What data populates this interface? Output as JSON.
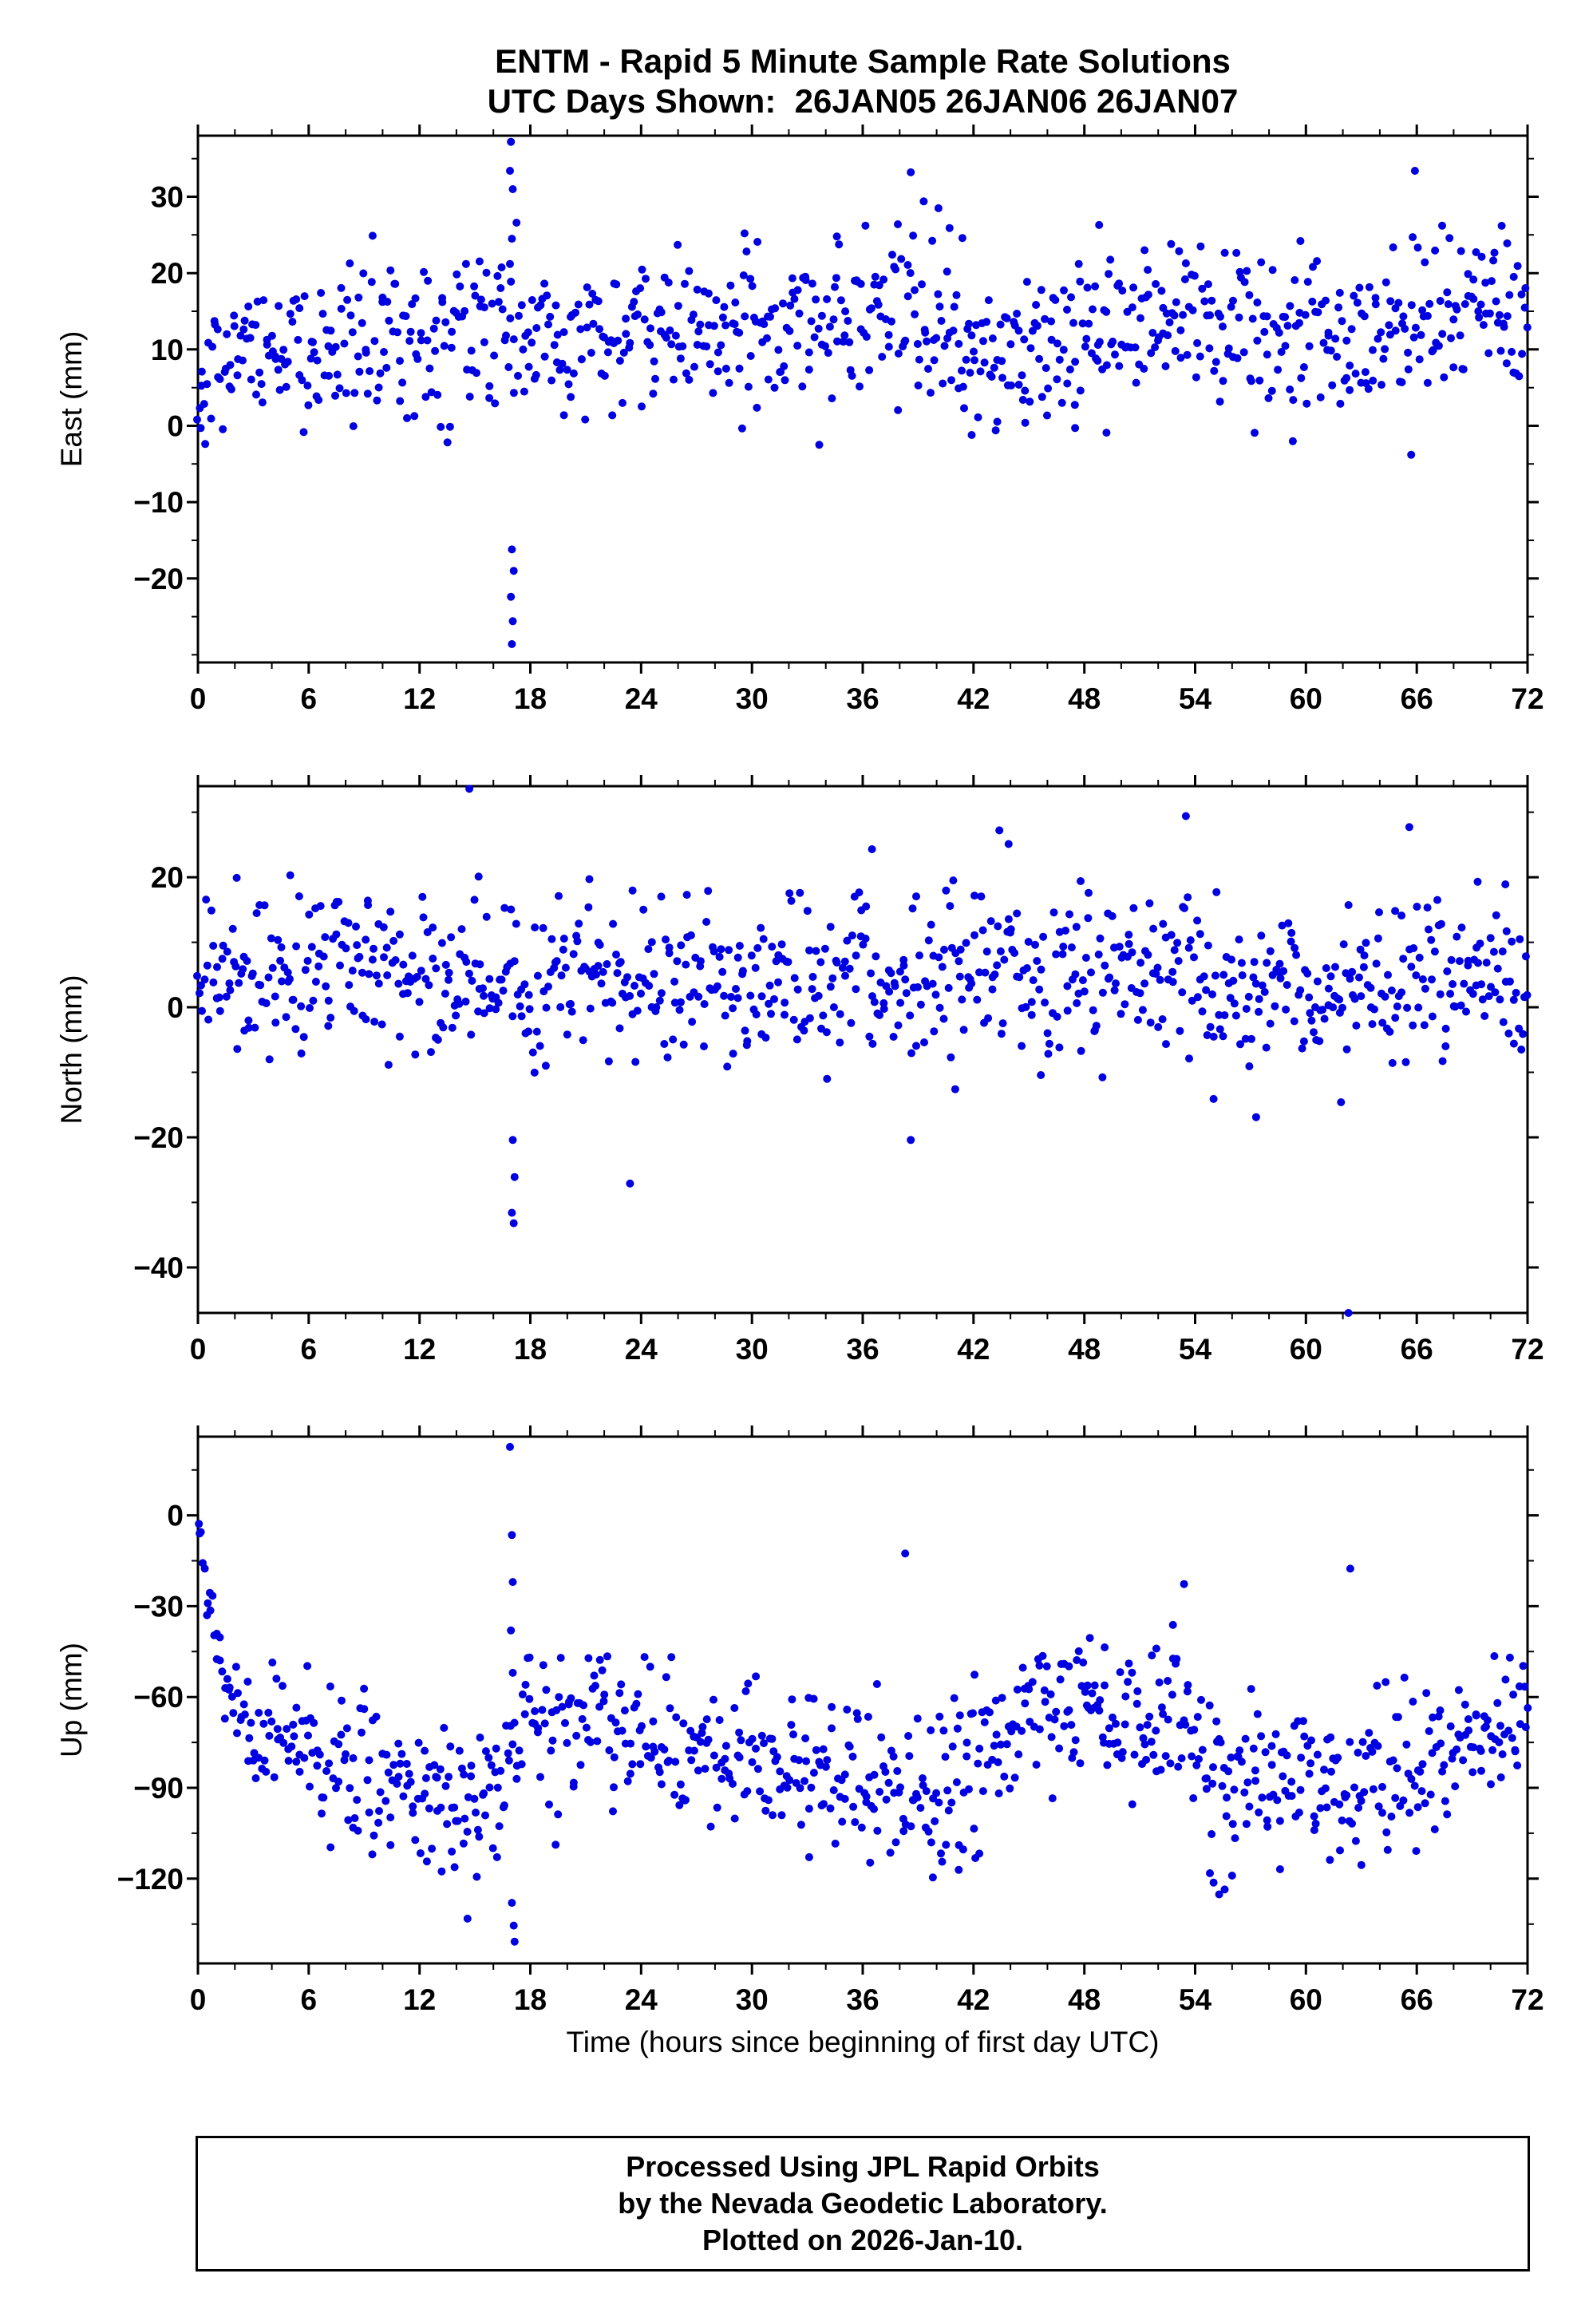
{
  "header": {
    "title": "ENTM - Rapid 5 Minute Sample Rate Solutions",
    "subtitle": "UTC Days Shown:  26JAN05 26JAN06 26JAN07"
  },
  "footer": {
    "lines": [
      "Processed Using JPL Rapid Orbits",
      "by the Nevada Geodetic Laboratory.",
      "Plotted on 2026-Jan-10."
    ]
  },
  "style": {
    "dot_color": "#0000E0",
    "axis_color": "#000000",
    "dot_radius": 5
  },
  "chart_data": [
    {
      "type": "scatter",
      "name": "East",
      "ylabel": "East (mm)",
      "xlabel": "",
      "xlim": [
        0,
        72
      ],
      "xticks": [
        0,
        6,
        12,
        18,
        24,
        30,
        36,
        42,
        48,
        54,
        60,
        66,
        72
      ],
      "x_minor_step": 2,
      "ylim": [
        -31,
        38
      ],
      "yticks": [
        30,
        20,
        10,
        0,
        -10,
        -20
      ],
      "y_minor_step": 5,
      "points_synthesis": {
        "n": 820,
        "seed": 101,
        "mean": 11.5,
        "std": 5.2,
        "clip_min": -2.5,
        "clip_max": 27,
        "drift": [
          [
            0,
            -7
          ],
          [
            1,
            -4
          ],
          [
            2,
            -1
          ],
          [
            4,
            0
          ],
          [
            8,
            0
          ],
          [
            12,
            0
          ],
          [
            16,
            1
          ],
          [
            20,
            0
          ],
          [
            24,
            1
          ],
          [
            28,
            2
          ],
          [
            32,
            2
          ],
          [
            36,
            2
          ],
          [
            38,
            3
          ],
          [
            40,
            2
          ],
          [
            42,
            -2
          ],
          [
            44,
            -2
          ],
          [
            46,
            -1
          ],
          [
            48,
            0
          ],
          [
            50,
            1
          ],
          [
            52,
            3
          ],
          [
            54,
            3
          ],
          [
            56,
            2
          ],
          [
            58,
            1
          ],
          [
            60,
            0
          ],
          [
            62,
            0
          ],
          [
            64,
            0
          ],
          [
            66,
            1
          ],
          [
            68,
            2
          ],
          [
            70,
            4
          ],
          [
            72,
            0
          ]
        ]
      },
      "explicit_points": [
        [
          0.15,
          -0.3
        ],
        [
          16.9,
          21.2
        ],
        [
          17.0,
          24.5
        ],
        [
          16.95,
          37.2
        ],
        [
          16.9,
          33.4
        ],
        [
          17.05,
          31.0
        ],
        [
          17.0,
          -16.2
        ],
        [
          17.1,
          -19.0
        ],
        [
          16.95,
          -22.4
        ],
        [
          17.05,
          -25.6
        ],
        [
          17.0,
          -28.6
        ],
        [
          37.9,
          26.4
        ],
        [
          38.6,
          33.2
        ],
        [
          39.3,
          29.4
        ],
        [
          40.1,
          28.5
        ],
        [
          40.7,
          25.9
        ],
        [
          41.4,
          24.6
        ],
        [
          29.6,
          25.2
        ],
        [
          30.3,
          24.1
        ],
        [
          34.6,
          24.8
        ],
        [
          41.9,
          -1.2
        ],
        [
          43.2,
          -0.6
        ],
        [
          44.8,
          0.4
        ],
        [
          47.5,
          -0.3
        ],
        [
          49.2,
          -0.9
        ],
        [
          48.8,
          26.3
        ],
        [
          52.7,
          23.8
        ],
        [
          59.7,
          24.2
        ],
        [
          65.9,
          33.4
        ],
        [
          65.7,
          -3.8
        ],
        [
          70.6,
          26.2
        ],
        [
          70.9,
          23.9
        ]
      ]
    },
    {
      "type": "scatter",
      "name": "North",
      "ylabel": "North (mm)",
      "xlabel": "",
      "xlim": [
        0,
        72
      ],
      "xticks": [
        0,
        6,
        12,
        18,
        24,
        30,
        36,
        42,
        48,
        54,
        60,
        66,
        72
      ],
      "x_minor_step": 2,
      "ylim": [
        -47,
        34
      ],
      "yticks": [
        20,
        0,
        -20,
        -40
      ],
      "y_minor_step": 10,
      "points_synthesis": {
        "n": 820,
        "seed": 202,
        "mean": 4.5,
        "std": 6,
        "clip_min": -14,
        "clip_max": 18,
        "drift": [
          [
            0,
            0
          ],
          [
            2,
            2
          ],
          [
            4,
            1
          ],
          [
            6,
            0
          ],
          [
            8,
            2
          ],
          [
            10,
            1
          ],
          [
            12,
            -1
          ],
          [
            14,
            -2
          ],
          [
            16,
            -2
          ],
          [
            18,
            0
          ],
          [
            20,
            0
          ],
          [
            22,
            -1
          ],
          [
            24,
            0
          ],
          [
            26,
            1
          ],
          [
            28,
            1
          ],
          [
            30,
            1
          ],
          [
            32,
            0
          ],
          [
            34,
            1
          ],
          [
            36,
            2
          ],
          [
            38,
            -3
          ],
          [
            40,
            -1
          ],
          [
            42,
            2
          ],
          [
            44,
            2
          ],
          [
            46,
            0
          ],
          [
            48,
            0
          ],
          [
            50,
            1
          ],
          [
            52,
            1
          ],
          [
            54,
            0
          ],
          [
            56,
            -1
          ],
          [
            58,
            -2
          ],
          [
            60,
            0
          ],
          [
            62,
            -2
          ],
          [
            64,
            0
          ],
          [
            66,
            1
          ],
          [
            68,
            1
          ],
          [
            70,
            0
          ],
          [
            72,
            -3
          ]
        ]
      },
      "explicit_points": [
        [
          14.7,
          33.6
        ],
        [
          15.2,
          20.1
        ],
        [
          17.05,
          -20.4
        ],
        [
          17.15,
          -26.1
        ],
        [
          17.0,
          -31.6
        ],
        [
          17.1,
          -33.2
        ],
        [
          23.4,
          -27.1
        ],
        [
          43.4,
          27.2
        ],
        [
          43.9,
          25.1
        ],
        [
          53.5,
          29.4
        ],
        [
          62.3,
          -47.0
        ],
        [
          65.6,
          27.7
        ],
        [
          2.1,
          19.9
        ],
        [
          5.0,
          20.3
        ],
        [
          9.2,
          16.4
        ],
        [
          21.2,
          19.7
        ],
        [
          36.5,
          24.3
        ],
        [
          40.9,
          19.5
        ],
        [
          47.8,
          19.4
        ],
        [
          69.3,
          19.3
        ],
        [
          70.8,
          18.9
        ],
        [
          38.6,
          -20.4
        ],
        [
          57.3,
          -16.9
        ],
        [
          55.0,
          -14.1
        ],
        [
          61.9,
          -14.6
        ]
      ]
    },
    {
      "type": "scatter",
      "name": "Up",
      "ylabel": "Up (mm)",
      "xlabel": "Time (hours since beginning of first day UTC)",
      "xlim": [
        0,
        72
      ],
      "xticks": [
        0,
        6,
        12,
        18,
        24,
        30,
        36,
        42,
        48,
        54,
        60,
        66,
        72
      ],
      "x_minor_step": 2,
      "ylim": [
        -148,
        26
      ],
      "yticks": [
        0,
        -30,
        -60,
        -90,
        -120
      ],
      "y_minor_step": 15,
      "points_synthesis": {
        "n": 820,
        "seed": 303,
        "mean": -78,
        "std": 12,
        "clip_min": -112,
        "clip_max": -46,
        "drift": [
          [
            0,
            10
          ],
          [
            2,
            10
          ],
          [
            4,
            8
          ],
          [
            6,
            4
          ],
          [
            8,
            -2
          ],
          [
            10,
            -6
          ],
          [
            12,
            -12
          ],
          [
            14,
            -14
          ],
          [
            15,
            -10
          ],
          [
            16,
            -8
          ],
          [
            17,
            -2
          ],
          [
            18,
            12
          ],
          [
            20,
            10
          ],
          [
            22,
            8
          ],
          [
            24,
            6
          ],
          [
            26,
            6
          ],
          [
            28,
            2
          ],
          [
            30,
            0
          ],
          [
            32,
            -2
          ],
          [
            34,
            -6
          ],
          [
            36,
            -10
          ],
          [
            38,
            -12
          ],
          [
            40,
            -14
          ],
          [
            42,
            -8
          ],
          [
            44,
            8
          ],
          [
            46,
            14
          ],
          [
            48,
            16
          ],
          [
            50,
            6
          ],
          [
            52,
            8
          ],
          [
            53,
            12
          ],
          [
            54,
            4
          ],
          [
            55,
            -12
          ],
          [
            56,
            -8
          ],
          [
            58,
            -4
          ],
          [
            60,
            -6
          ],
          [
            62,
            -14
          ],
          [
            63,
            -12
          ],
          [
            64,
            -8
          ],
          [
            66,
            -4
          ],
          [
            68,
            0
          ],
          [
            70,
            4
          ],
          [
            72,
            8
          ]
        ]
      },
      "ramp": {
        "x0": 0,
        "x1": 2.4,
        "y0": 1,
        "y1": -66,
        "std": 7
      },
      "explicit_points": [
        [
          16.9,
          22.6
        ],
        [
          17.0,
          -6.5
        ],
        [
          17.05,
          -22.0
        ],
        [
          16.95,
          -38.0
        ],
        [
          17.05,
          -52.0
        ],
        [
          17.0,
          -128.0
        ],
        [
          17.1,
          -135.5
        ],
        [
          17.15,
          -140.8
        ],
        [
          14.6,
          -133.2
        ],
        [
          15.1,
          -119.4
        ],
        [
          13.9,
          -116.2
        ],
        [
          12.4,
          -114.3
        ],
        [
          13.2,
          -117.6
        ],
        [
          16.2,
          -112.9
        ],
        [
          38.3,
          -12.6
        ],
        [
          36.4,
          -114.7
        ],
        [
          39.8,
          -119.6
        ],
        [
          40.3,
          -114.4
        ],
        [
          41.2,
          -117.1
        ],
        [
          42.1,
          -113.2
        ],
        [
          33.1,
          -112.9
        ],
        [
          54.8,
          -118.2
        ],
        [
          55.0,
          -121.3
        ],
        [
          55.3,
          -125.2
        ],
        [
          55.6,
          -123.6
        ],
        [
          56.0,
          -119.0
        ],
        [
          58.6,
          -116.9
        ],
        [
          62.4,
          -17.6
        ],
        [
          53.4,
          -22.7
        ],
        [
          52.8,
          -36.2
        ],
        [
          47.7,
          -44.9
        ],
        [
          49.1,
          -43.6
        ],
        [
          48.3,
          -40.5
        ],
        [
          51.9,
          -44.0
        ],
        [
          61.3,
          -113.8
        ],
        [
          63.0,
          -115.5
        ],
        [
          70.2,
          -46.5
        ]
      ]
    }
  ]
}
